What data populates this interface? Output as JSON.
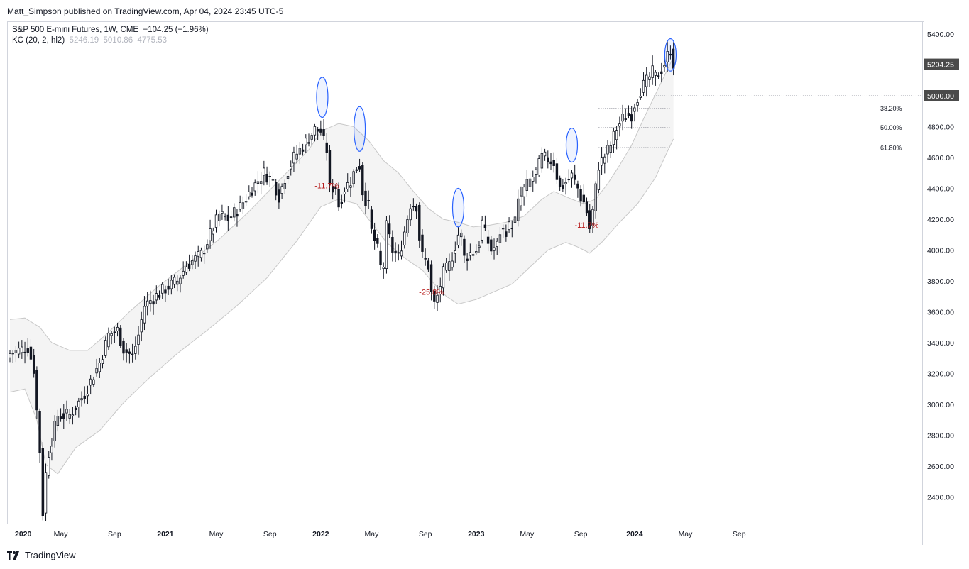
{
  "header": {
    "published": "Matt_Simpson published on TradingView.com, Apr 04, 2024 23:45 UTC-5"
  },
  "legend": {
    "symbol": "S&P 500 E-mini Futures, 1W, CME",
    "change": "−104.25 (−1.96%)",
    "indicator": "KC (20, 2, hl2)",
    "kc_upper": "5246.19",
    "kc_mid": "5010.86",
    "kc_lower": "4775.53"
  },
  "brand": {
    "name": "TradingView"
  },
  "price_labels": {
    "current": "5204.25",
    "level": "5000.00"
  },
  "colors": {
    "up_fill": "#ffffff",
    "down_fill": "#131722",
    "candle_stroke": "#131722",
    "band_line": "#c8c8c8",
    "band_fill": "#f4f4f4",
    "annotation": "#b71c1c",
    "highlight": "#2962ff",
    "price_tag": "#4a4a4a"
  },
  "chart_data": {
    "type": "candlestick",
    "title": "S&P 500 E-mini Futures, 1W, CME",
    "interval": "1W",
    "ylim": [
      2250,
      5500
    ],
    "y_ticks": [
      2400,
      2600,
      2800,
      3000,
      3200,
      3400,
      3600,
      3800,
      4000,
      4200,
      4400,
      4600,
      4800,
      5000,
      5200,
      5400
    ],
    "y_tick_labels": [
      "2400.00",
      "2600.00",
      "2800.00",
      "3000.00",
      "3200.00",
      "3400.00",
      "3600.00",
      "3800.00",
      "4000.00",
      "4200.00",
      "4400.00",
      "4600.00",
      "4800.00",
      "5000.00",
      "5200.00",
      "5400.00"
    ],
    "x_ticks": [
      {
        "label": "2020",
        "week": 0,
        "bold": true
      },
      {
        "label": "May",
        "week": 17
      },
      {
        "label": "Sep",
        "week": 35
      },
      {
        "label": "2021",
        "week": 52,
        "bold": true
      },
      {
        "label": "May",
        "week": 69
      },
      {
        "label": "Sep",
        "week": 87
      },
      {
        "label": "2022",
        "week": 104,
        "bold": true
      },
      {
        "label": "May",
        "week": 121
      },
      {
        "label": "Sep",
        "week": 139
      },
      {
        "label": "2023",
        "week": 156,
        "bold": true
      },
      {
        "label": "May",
        "week": 173
      },
      {
        "label": "Sep",
        "week": 191
      },
      {
        "label": "2024",
        "week": 209,
        "bold": true
      },
      {
        "label": "May",
        "week": 226
      },
      {
        "label": "Sep",
        "week": 244
      }
    ],
    "close_path": [
      [
        0,
        3330
      ],
      [
        6,
        3370
      ],
      [
        8,
        3230
      ],
      [
        9,
        2960
      ],
      [
        10,
        2700
      ],
      [
        11,
        2300
      ],
      [
        12,
        2550
      ],
      [
        13,
        2690
      ],
      [
        16,
        2930
      ],
      [
        20,
        2930
      ],
      [
        25,
        3070
      ],
      [
        30,
        3270
      ],
      [
        33,
        3450
      ],
      [
        36,
        3480
      ],
      [
        38,
        3360
      ],
      [
        41,
        3310
      ],
      [
        43,
        3450
      ],
      [
        45,
        3640
      ],
      [
        48,
        3690
      ],
      [
        52,
        3750
      ],
      [
        56,
        3800
      ],
      [
        59,
        3900
      ],
      [
        64,
        3970
      ],
      [
        67,
        4100
      ],
      [
        70,
        4230
      ],
      [
        73,
        4200
      ],
      [
        77,
        4280
      ],
      [
        81,
        4400
      ],
      [
        85,
        4500
      ],
      [
        88,
        4450
      ],
      [
        90,
        4350
      ],
      [
        92,
        4470
      ],
      [
        95,
        4600
      ],
      [
        99,
        4700
      ],
      [
        102,
        4780
      ],
      [
        104,
        4770
      ],
      [
        105,
        4700
      ],
      [
        106,
        4650
      ],
      [
        107,
        4400
      ],
      [
        109,
        4410
      ],
      [
        110,
        4290
      ],
      [
        112,
        4400
      ],
      [
        114,
        4450
      ],
      [
        116,
        4540
      ],
      [
        117,
        4550
      ],
      [
        118,
        4380
      ],
      [
        120,
        4280
      ],
      [
        121,
        4120
      ],
      [
        123,
        4000
      ],
      [
        124,
        3890
      ],
      [
        125,
        3900
      ],
      [
        126,
        4150
      ],
      [
        128,
        4000
      ],
      [
        130,
        3950
      ],
      [
        132,
        4120
      ],
      [
        134,
        4300
      ],
      [
        136,
        4290
      ],
      [
        137,
        4080
      ],
      [
        138,
        3960
      ],
      [
        140,
        3900
      ],
      [
        141,
        3720
      ],
      [
        142,
        3650
      ],
      [
        143,
        3700
      ],
      [
        145,
        3850
      ],
      [
        147,
        3900
      ],
      [
        149,
        4030
      ],
      [
        150,
        4100
      ],
      [
        151,
        4090
      ],
      [
        152,
        3950
      ],
      [
        154,
        3980
      ],
      [
        156,
        4000
      ],
      [
        157,
        4050
      ],
      [
        158,
        4180
      ],
      [
        159,
        4100
      ],
      [
        161,
        4000
      ],
      [
        163,
        4030
      ],
      [
        164,
        4120
      ],
      [
        166,
        4130
      ],
      [
        169,
        4190
      ],
      [
        170,
        4300
      ],
      [
        172,
        4390
      ],
      [
        174,
        4450
      ],
      [
        176,
        4500
      ],
      [
        178,
        4600
      ],
      [
        180,
        4590
      ],
      [
        182,
        4570
      ],
      [
        183,
        4480
      ],
      [
        184,
        4400
      ],
      [
        186,
        4440
      ],
      [
        188,
        4480
      ],
      [
        190,
        4400
      ],
      [
        191,
        4340
      ],
      [
        192,
        4310
      ],
      [
        193,
        4250
      ],
      [
        194,
        4140
      ],
      [
        195,
        4250
      ],
      [
        196,
        4400
      ],
      [
        197,
        4550
      ],
      [
        199,
        4610
      ],
      [
        201,
        4680
      ],
      [
        203,
        4790
      ],
      [
        205,
        4850
      ],
      [
        206,
        4870
      ],
      [
        208,
        4880
      ],
      [
        209,
        4950
      ],
      [
        211,
        5040
      ],
      [
        213,
        5090
      ],
      [
        215,
        5150
      ],
      [
        216,
        5120
      ],
      [
        218,
        5170
      ],
      [
        219,
        5210
      ],
      [
        220,
        5260
      ],
      [
        221,
        5300
      ],
      [
        222,
        5210
      ]
    ],
    "kc_upper_path": [
      [
        0,
        3550
      ],
      [
        5,
        3560
      ],
      [
        10,
        3500
      ],
      [
        14,
        3400
      ],
      [
        20,
        3350
      ],
      [
        26,
        3350
      ],
      [
        32,
        3450
      ],
      [
        40,
        3600
      ],
      [
        50,
        3770
      ],
      [
        60,
        3920
      ],
      [
        70,
        4070
      ],
      [
        80,
        4250
      ],
      [
        90,
        4450
      ],
      [
        100,
        4650
      ],
      [
        104,
        4770
      ],
      [
        110,
        4820
      ],
      [
        115,
        4800
      ],
      [
        120,
        4710
      ],
      [
        125,
        4580
      ],
      [
        130,
        4500
      ],
      [
        135,
        4380
      ],
      [
        140,
        4270
      ],
      [
        145,
        4200
      ],
      [
        150,
        4180
      ],
      [
        155,
        4150
      ],
      [
        160,
        4160
      ],
      [
        166,
        4180
      ],
      [
        172,
        4220
      ],
      [
        178,
        4330
      ],
      [
        182,
        4380
      ],
      [
        188,
        4330
      ],
      [
        192,
        4300
      ],
      [
        196,
        4330
      ],
      [
        200,
        4430
      ],
      [
        204,
        4550
      ],
      [
        208,
        4680
      ],
      [
        212,
        4850
      ],
      [
        216,
        5010
      ],
      [
        220,
        5170
      ],
      [
        222,
        5250
      ]
    ],
    "kc_lower_path": [
      [
        0,
        3080
      ],
      [
        5,
        3100
      ],
      [
        9,
        2900
      ],
      [
        12,
        2610
      ],
      [
        16,
        2550
      ],
      [
        22,
        2720
      ],
      [
        30,
        2830
      ],
      [
        38,
        3010
      ],
      [
        46,
        3160
      ],
      [
        56,
        3330
      ],
      [
        66,
        3480
      ],
      [
        76,
        3640
      ],
      [
        86,
        3820
      ],
      [
        96,
        4060
      ],
      [
        104,
        4280
      ],
      [
        110,
        4330
      ],
      [
        116,
        4300
      ],
      [
        120,
        4200
      ],
      [
        126,
        4050
      ],
      [
        132,
        3950
      ],
      [
        138,
        3870
      ],
      [
        142,
        3780
      ],
      [
        146,
        3700
      ],
      [
        150,
        3650
      ],
      [
        156,
        3680
      ],
      [
        162,
        3730
      ],
      [
        168,
        3780
      ],
      [
        174,
        3890
      ],
      [
        180,
        4000
      ],
      [
        186,
        4050
      ],
      [
        190,
        4020
      ],
      [
        194,
        3980
      ],
      [
        198,
        4050
      ],
      [
        204,
        4180
      ],
      [
        210,
        4300
      ],
      [
        216,
        4470
      ],
      [
        220,
        4640
      ],
      [
        222,
        4720
      ]
    ],
    "annotations": [
      {
        "label": "-11.7%",
        "week": 106,
        "price": 4400
      },
      {
        "label": "-25.8%",
        "week": 141,
        "price": 3710
      },
      {
        "label": "-11.7%",
        "week": 193,
        "price": 4145
      }
    ],
    "fib_levels": [
      {
        "label": "38.20%",
        "price": 4920
      },
      {
        "label": "50.00%",
        "price": 4795
      },
      {
        "label": "61.80%",
        "price": 4665
      }
    ],
    "level_5000": 5000,
    "highlights": [
      {
        "week": 104.5,
        "low": 4860,
        "high": 5120
      },
      {
        "week": 117,
        "low": 4640,
        "high": 4930
      },
      {
        "week": 150,
        "low": 4150,
        "high": 4400
      },
      {
        "week": 188,
        "low": 4570,
        "high": 4790
      },
      {
        "week": 221,
        "low": 5160,
        "high": 5370
      }
    ]
  }
}
